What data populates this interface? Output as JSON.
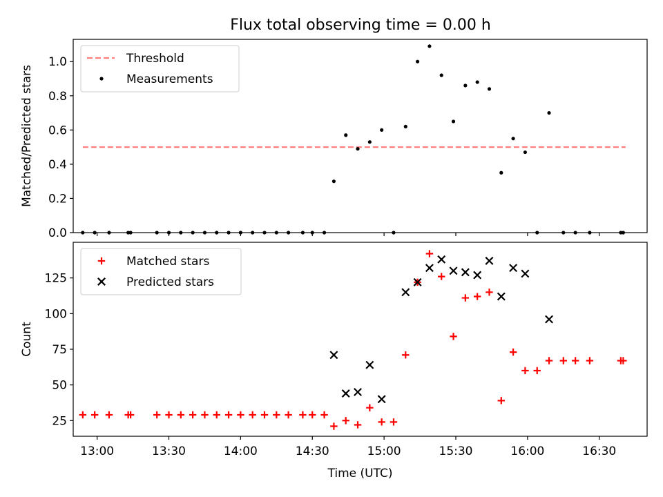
{
  "title": "Flux total observing time = 0.00 h",
  "chart_data": [
    {
      "type": "scatter",
      "ylabel": "Matched/Predicted stars",
      "xlim": [
        "12:50",
        "16:50"
      ],
      "ylim": [
        0,
        1.13
      ],
      "yticks": [
        "0.0",
        "0.2",
        "0.4",
        "0.6",
        "0.8",
        "1.0"
      ],
      "legend": {
        "position": "top-left",
        "entries": [
          {
            "label": "Threshold",
            "series": "threshold"
          },
          {
            "label": "Measurements",
            "series": "measurements"
          }
        ]
      },
      "series": [
        {
          "key": "threshold",
          "style": "dashed-line",
          "color": "#ff7f7f",
          "points": [
            [
              "12:54",
              0.5
            ],
            [
              "16:41",
              0.5
            ]
          ]
        },
        {
          "key": "measurements",
          "style": "dot",
          "color": "#000000",
          "points": [
            [
              "12:54",
              0
            ],
            [
              "12:59",
              0
            ],
            [
              "13:05",
              0
            ],
            [
              "13:13",
              0
            ],
            [
              "13:14",
              0
            ],
            [
              "13:25",
              0
            ],
            [
              "13:30",
              0
            ],
            [
              "13:35",
              0
            ],
            [
              "13:40",
              0
            ],
            [
              "13:45",
              0
            ],
            [
              "13:50",
              0
            ],
            [
              "13:55",
              0
            ],
            [
              "14:00",
              0
            ],
            [
              "14:05",
              0
            ],
            [
              "14:10",
              0
            ],
            [
              "14:15",
              0
            ],
            [
              "14:20",
              0
            ],
            [
              "14:26",
              0
            ],
            [
              "14:30",
              0
            ],
            [
              "14:35",
              0
            ],
            [
              "14:39",
              0.3
            ],
            [
              "14:44",
              0.57
            ],
            [
              "14:49",
              0.49
            ],
            [
              "14:54",
              0.53
            ],
            [
              "14:59",
              0.6
            ],
            [
              "15:04",
              0
            ],
            [
              "15:09",
              0.62
            ],
            [
              "15:14",
              1.0
            ],
            [
              "15:19",
              1.09
            ],
            [
              "15:24",
              0.92
            ],
            [
              "15:29",
              0.65
            ],
            [
              "15:34",
              0.86
            ],
            [
              "15:39",
              0.88
            ],
            [
              "15:44",
              0.84
            ],
            [
              "15:49",
              0.35
            ],
            [
              "15:54",
              0.55
            ],
            [
              "15:59",
              0.47
            ],
            [
              "16:04",
              0
            ],
            [
              "16:09",
              0.7
            ],
            [
              "16:15",
              0
            ],
            [
              "16:20",
              0
            ],
            [
              "16:26",
              0
            ],
            [
              "16:39",
              0
            ],
            [
              "16:40",
              0
            ]
          ]
        }
      ]
    },
    {
      "type": "scatter",
      "xlabel": "Time (UTC)",
      "ylabel": "Count",
      "xlim": [
        "12:50",
        "16:50"
      ],
      "ylim": [
        14,
        150
      ],
      "xticks": [
        "13:00",
        "13:30",
        "14:00",
        "14:30",
        "15:00",
        "15:30",
        "16:00",
        "16:30"
      ],
      "yticks": [
        "25",
        "50",
        "75",
        "100",
        "125"
      ],
      "legend": {
        "position": "top-left",
        "entries": [
          {
            "label": "Matched stars",
            "series": "matched"
          },
          {
            "label": "Predicted stars",
            "series": "predicted"
          }
        ]
      },
      "series": [
        {
          "key": "matched",
          "marker": "plus",
          "color": "#ff0000",
          "points": [
            [
              "12:54",
              29
            ],
            [
              "12:59",
              29
            ],
            [
              "13:05",
              29
            ],
            [
              "13:13",
              29
            ],
            [
              "13:14",
              29
            ],
            [
              "13:25",
              29
            ],
            [
              "13:30",
              29
            ],
            [
              "13:35",
              29
            ],
            [
              "13:40",
              29
            ],
            [
              "13:45",
              29
            ],
            [
              "13:50",
              29
            ],
            [
              "13:55",
              29
            ],
            [
              "14:00",
              29
            ],
            [
              "14:05",
              29
            ],
            [
              "14:10",
              29
            ],
            [
              "14:15",
              29
            ],
            [
              "14:20",
              29
            ],
            [
              "14:26",
              29
            ],
            [
              "14:30",
              29
            ],
            [
              "14:35",
              29
            ],
            [
              "14:39",
              21
            ],
            [
              "14:44",
              25
            ],
            [
              "14:49",
              22
            ],
            [
              "14:54",
              34
            ],
            [
              "14:59",
              24
            ],
            [
              "15:04",
              24
            ],
            [
              "15:09",
              71
            ],
            [
              "15:14",
              122
            ],
            [
              "15:19",
              142
            ],
            [
              "15:24",
              126
            ],
            [
              "15:29",
              84
            ],
            [
              "15:34",
              111
            ],
            [
              "15:39",
              112
            ],
            [
              "15:44",
              115
            ],
            [
              "15:49",
              39
            ],
            [
              "15:54",
              73
            ],
            [
              "15:59",
              60
            ],
            [
              "16:04",
              60
            ],
            [
              "16:09",
              67
            ],
            [
              "16:15",
              67
            ],
            [
              "16:20",
              67
            ],
            [
              "16:26",
              67
            ],
            [
              "16:39",
              67
            ],
            [
              "16:40",
              67
            ]
          ]
        },
        {
          "key": "predicted",
          "marker": "x",
          "color": "#000000",
          "points": [
            [
              "14:39",
              71
            ],
            [
              "14:44",
              44
            ],
            [
              "14:49",
              45
            ],
            [
              "14:54",
              64
            ],
            [
              "14:59",
              40
            ],
            [
              "15:09",
              115
            ],
            [
              "15:14",
              122
            ],
            [
              "15:19",
              132
            ],
            [
              "15:24",
              138
            ],
            [
              "15:29",
              130
            ],
            [
              "15:34",
              129
            ],
            [
              "15:39",
              127
            ],
            [
              "15:44",
              137
            ],
            [
              "15:49",
              112
            ],
            [
              "15:54",
              132
            ],
            [
              "15:59",
              128
            ],
            [
              "16:09",
              96
            ]
          ]
        }
      ]
    }
  ]
}
